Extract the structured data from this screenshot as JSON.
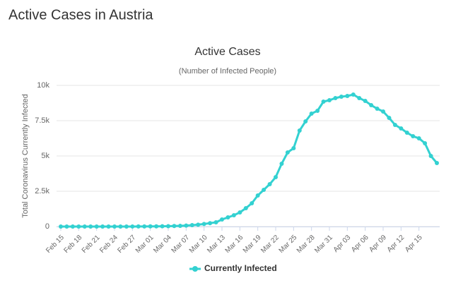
{
  "page_title": "Active Cases in Austria",
  "chart_data": {
    "type": "line",
    "title": "Active Cases",
    "subtitle": "(Number of Infected People)",
    "y_label": "Total Coronavirus Currently Infected",
    "categories": [
      "Feb 15",
      null,
      null,
      "Feb 18",
      null,
      null,
      "Feb 21",
      null,
      null,
      "Feb 24",
      null,
      null,
      "Feb 27",
      null,
      null,
      "Mar 01",
      null,
      null,
      "Mar 04",
      null,
      null,
      "Mar 07",
      null,
      null,
      "Mar 10",
      null,
      null,
      "Mar 13",
      null,
      null,
      "Mar 16",
      null,
      null,
      "Mar 19",
      null,
      null,
      "Mar 22",
      null,
      null,
      "Mar 25",
      null,
      null,
      "Mar 28",
      null,
      null,
      "Mar 31",
      null,
      null,
      "Apr 03",
      null,
      null,
      "Apr 06",
      null,
      null,
      "Apr 09",
      null,
      null,
      "Apr 12",
      null,
      null,
      "Apr 15",
      null,
      null,
      null
    ],
    "series": [
      {
        "name": "Currently Infected",
        "color": "#33d1d1",
        "values": [
          0,
          0,
          0,
          0,
          0,
          0,
          0,
          0,
          0,
          0,
          2,
          2,
          3,
          5,
          7,
          10,
          14,
          18,
          24,
          37,
          47,
          66,
          99,
          130,
          180,
          240,
          300,
          500,
          650,
          800,
          1000,
          1300,
          1650,
          2200,
          2600,
          3000,
          3500,
          4450,
          5250,
          5550,
          6800,
          7450,
          8000,
          8200,
          8850,
          8950,
          9100,
          9200,
          9250,
          9350,
          9100,
          8900,
          8600,
          8350,
          8150,
          7700,
          7200,
          6950,
          6650,
          6400,
          6250,
          5900,
          5000,
          4500
        ]
      }
    ],
    "ylim": [
      0,
      10000
    ],
    "yticks": [
      0,
      {
        "value": 2500,
        "label": "2.5k"
      },
      {
        "value": 5000,
        "label": "5k"
      },
      {
        "value": 7500,
        "label": "7.5k"
      },
      {
        "value": 10000,
        "label": "10k"
      }
    ],
    "grid": true
  }
}
